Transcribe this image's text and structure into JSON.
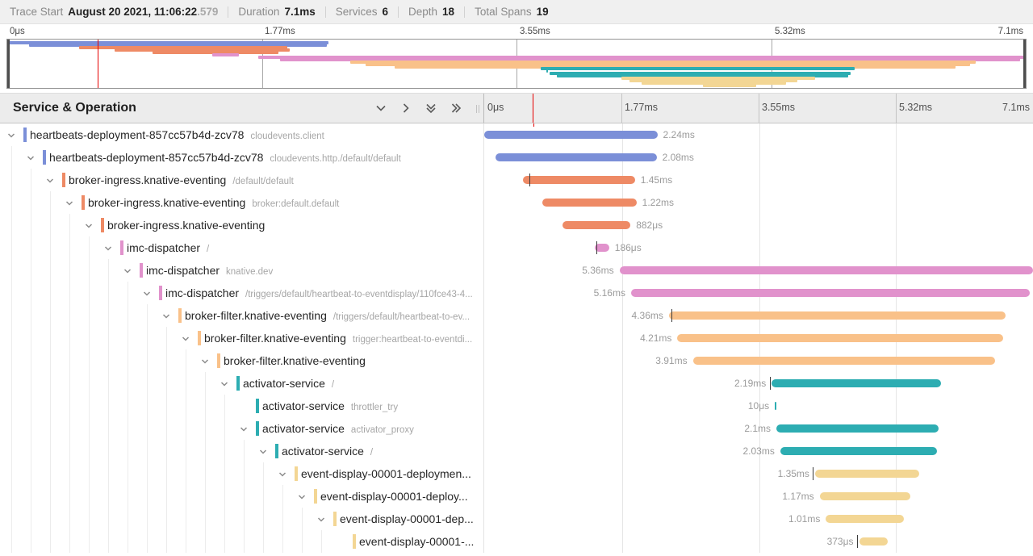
{
  "trace_header": {
    "items": [
      {
        "label": "Trace Start",
        "value": "August 20 2021, 11:06:22",
        "muted": ".579"
      },
      {
        "label": "Duration",
        "value": "7.1ms"
      },
      {
        "label": "Services",
        "value": "6"
      },
      {
        "label": "Depth",
        "value": "18"
      },
      {
        "label": "Total Spans",
        "value": "19"
      }
    ]
  },
  "timeline": {
    "total_ms": 7.1,
    "ticks": [
      {
        "label": "0μs",
        "pct": 0
      },
      {
        "label": "1.77ms",
        "pct": 25
      },
      {
        "label": "3.55ms",
        "pct": 50
      },
      {
        "label": "5.32ms",
        "pct": 75
      },
      {
        "label": "7.1ms",
        "pct": 100
      }
    ],
    "cursor_ms": 0.63,
    "cursor_color": "#e60000",
    "grid_color_map": "#a8a8a8",
    "grid_color_rows": "#e6e6e6"
  },
  "section": {
    "title": "Service & Operation"
  },
  "service_colors": {
    "heartbeats": "#7b8fd8",
    "broker_ingress": "#ee8a65",
    "imc_dispatcher": "#e192cc",
    "broker_filter": "#f9c189",
    "activator": "#2dadb2",
    "event_display": "#f3d694"
  },
  "spans": [
    {
      "service": "heartbeats-deployment-857cc57b4d-zcv78",
      "operation": "cloudevents.client",
      "depth": 0,
      "color": "#7b8fd8",
      "start_ms": 0.0,
      "duration_ms": 2.24,
      "duration_label": "2.24ms",
      "label_side": "right",
      "has_children": true,
      "tick_ms": null
    },
    {
      "service": "heartbeats-deployment-857cc57b4d-zcv78",
      "operation": "cloudevents.http./default/default",
      "depth": 1,
      "color": "#7b8fd8",
      "start_ms": 0.15,
      "duration_ms": 2.08,
      "duration_label": "2.08ms",
      "label_side": "right",
      "has_children": true,
      "tick_ms": null
    },
    {
      "service": "broker-ingress.knative-eventing",
      "operation": "/default/default",
      "depth": 2,
      "color": "#ee8a65",
      "start_ms": 0.5,
      "duration_ms": 1.45,
      "duration_label": "1.45ms",
      "label_side": "right",
      "has_children": true,
      "tick_ms": 0.58
    },
    {
      "service": "broker-ingress.knative-eventing",
      "operation": "broker:default.default",
      "depth": 3,
      "color": "#ee8a65",
      "start_ms": 0.75,
      "duration_ms": 1.22,
      "duration_label": "1.22ms",
      "label_side": "right",
      "has_children": true,
      "tick_ms": null
    },
    {
      "service": "broker-ingress.knative-eventing",
      "operation": "",
      "depth": 4,
      "color": "#ee8a65",
      "start_ms": 1.01,
      "duration_ms": 0.882,
      "duration_label": "882μs",
      "label_side": "right",
      "has_children": true,
      "tick_ms": null
    },
    {
      "service": "imc-dispatcher",
      "operation": "/",
      "depth": 5,
      "color": "#e192cc",
      "start_ms": 1.43,
      "duration_ms": 0.186,
      "duration_label": "186μs",
      "label_side": "right",
      "has_children": true,
      "tick_ms": 1.45
    },
    {
      "service": "imc-dispatcher",
      "operation": "knative.dev",
      "depth": 6,
      "color": "#e192cc",
      "start_ms": 1.75,
      "duration_ms": 5.36,
      "duration_label": "5.36ms",
      "label_side": "left",
      "has_children": true,
      "tick_ms": null
    },
    {
      "service": "imc-dispatcher",
      "operation": "/triggers/default/heartbeat-to-eventdisplay/110fce43-4...",
      "depth": 7,
      "color": "#e192cc",
      "start_ms": 1.9,
      "duration_ms": 5.16,
      "duration_label": "5.16ms",
      "label_side": "left",
      "has_children": true,
      "tick_ms": null
    },
    {
      "service": "broker-filter.knative-eventing",
      "operation": "/triggers/default/heartbeat-to-ev...",
      "depth": 8,
      "color": "#f9c189",
      "start_ms": 2.39,
      "duration_ms": 4.36,
      "duration_label": "4.36ms",
      "label_side": "left",
      "has_children": true,
      "tick_ms": 2.42
    },
    {
      "service": "broker-filter.knative-eventing",
      "operation": "trigger:heartbeat-to-eventdi...",
      "depth": 9,
      "color": "#f9c189",
      "start_ms": 2.5,
      "duration_ms": 4.21,
      "duration_label": "4.21ms",
      "label_side": "left",
      "has_children": true,
      "tick_ms": null
    },
    {
      "service": "broker-filter.knative-eventing",
      "operation": "",
      "depth": 10,
      "color": "#f9c189",
      "start_ms": 2.7,
      "duration_ms": 3.91,
      "duration_label": "3.91ms",
      "label_side": "left",
      "has_children": true,
      "tick_ms": null
    },
    {
      "service": "activator-service",
      "operation": "/",
      "depth": 11,
      "color": "#2dadb2",
      "start_ms": 3.72,
      "duration_ms": 2.19,
      "duration_label": "2.19ms",
      "label_side": "left",
      "has_children": true,
      "tick_ms": 3.7
    },
    {
      "service": "activator-service",
      "operation": "throttler_try",
      "depth": 12,
      "color": "#2dadb2",
      "start_ms": 3.76,
      "duration_ms": 0.01,
      "duration_label": "10μs",
      "label_side": "left",
      "has_children": false,
      "tick_ms": null
    },
    {
      "service": "activator-service",
      "operation": "activator_proxy",
      "depth": 12,
      "color": "#2dadb2",
      "start_ms": 3.78,
      "duration_ms": 2.1,
      "duration_label": "2.1ms",
      "label_side": "left",
      "has_children": true,
      "tick_ms": null
    },
    {
      "service": "activator-service",
      "operation": "/",
      "depth": 13,
      "color": "#2dadb2",
      "start_ms": 3.83,
      "duration_ms": 2.03,
      "duration_label": "2.03ms",
      "label_side": "left",
      "has_children": true,
      "tick_ms": null
    },
    {
      "service": "event-display-00001-deploymen...",
      "operation": "",
      "depth": 14,
      "color": "#f3d694",
      "start_ms": 4.28,
      "duration_ms": 1.35,
      "duration_label": "1.35ms",
      "label_side": "left",
      "has_children": true,
      "tick_ms": 4.25
    },
    {
      "service": "event-display-00001-deploy...",
      "operation": "",
      "depth": 15,
      "color": "#f3d694",
      "start_ms": 4.34,
      "duration_ms": 1.17,
      "duration_label": "1.17ms",
      "label_side": "left",
      "has_children": true,
      "tick_ms": null
    },
    {
      "service": "event-display-00001-dep...",
      "operation": "",
      "depth": 16,
      "color": "#f3d694",
      "start_ms": 4.42,
      "duration_ms": 1.01,
      "duration_label": "1.01ms",
      "label_side": "left",
      "has_children": true,
      "tick_ms": null
    },
    {
      "service": "event-display-00001-...",
      "operation": "",
      "depth": 17,
      "color": "#f3d694",
      "start_ms": 4.85,
      "duration_ms": 0.373,
      "duration_label": "373μs",
      "label_side": "left",
      "has_children": false,
      "tick_ms": 4.82
    }
  ]
}
